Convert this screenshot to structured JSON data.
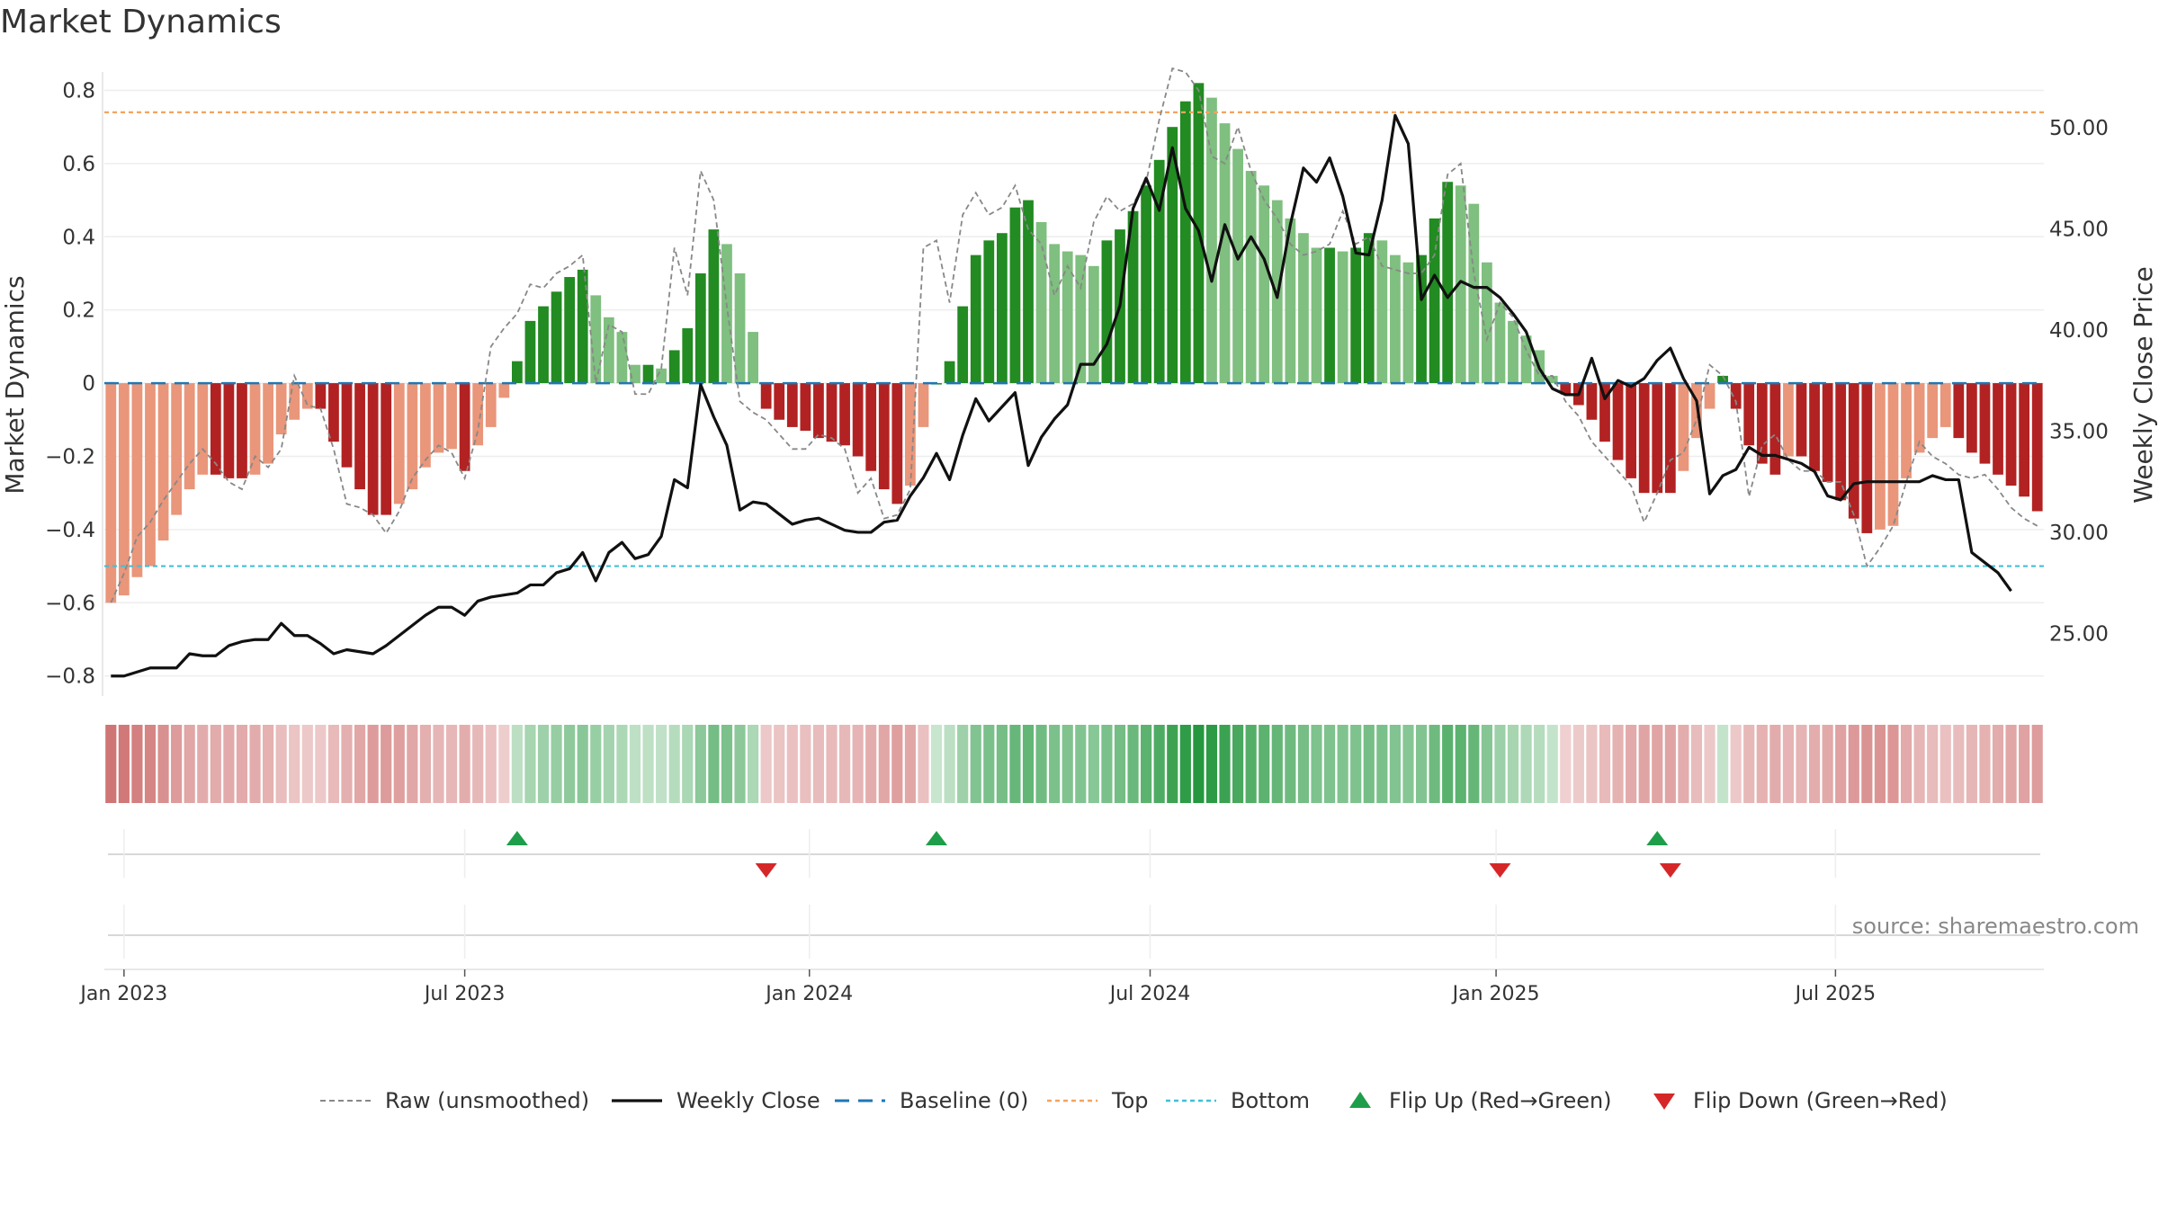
{
  "chart_data": {
    "type": "bar",
    "title": "Market Dynamics",
    "ylabel": "Market Dynamics",
    "y2label": "Weekly Close Price",
    "source": "source: sharemaestro.com",
    "ylim": [
      -0.85,
      0.87
    ],
    "y2lim": [
      22.0,
      53.1
    ],
    "yticks": [
      {
        "v": 0.8,
        "label": "0.8"
      },
      {
        "v": 0.6,
        "label": "0.6"
      },
      {
        "v": 0.4,
        "label": "0.4"
      },
      {
        "v": 0.2,
        "label": "0.2"
      },
      {
        "v": 0,
        "label": "0"
      },
      {
        "v": -0.2,
        "label": "−0.2"
      },
      {
        "v": -0.4,
        "label": "−0.4"
      },
      {
        "v": -0.6,
        "label": "−0.6"
      },
      {
        "v": -0.8,
        "label": "−0.8"
      }
    ],
    "y2ticks": [
      {
        "v": 50,
        "label": "50.00"
      },
      {
        "v": 45,
        "label": "45.00"
      },
      {
        "v": 40,
        "label": "40.00"
      },
      {
        "v": 35,
        "label": "35.00"
      },
      {
        "v": 30,
        "label": "30.00"
      },
      {
        "v": 25,
        "label": "25.00"
      }
    ],
    "xticks": [
      {
        "week": 1,
        "label": "Jan 2023"
      },
      {
        "week": 27,
        "label": "Jul 2023"
      },
      {
        "week": 53.3,
        "label": "Jan 2024"
      },
      {
        "week": 79.3,
        "label": "Jul 2024"
      },
      {
        "week": 105.7,
        "label": "Jan 2025"
      },
      {
        "week": 131.6,
        "label": "Jul 2025"
      }
    ],
    "top_line": 0.74,
    "bottom_line": -0.5,
    "colors": {
      "strong_green": "#228B22",
      "light_green": "#7FBF7F",
      "strong_red": "#B22222",
      "light_red": "#E9967A",
      "raw": "#888888",
      "close": "#111111",
      "baseline": "#1F77B4",
      "top": "#F4A460",
      "bottom": "#40C0D8",
      "flip_up": "#1E9E4A",
      "flip_down": "#D62728"
    },
    "dynamics": [
      -0.6,
      -0.58,
      -0.53,
      -0.5,
      -0.43,
      -0.36,
      -0.29,
      -0.25,
      -0.25,
      -0.26,
      -0.26,
      -0.25,
      -0.22,
      -0.14,
      -0.1,
      -0.07,
      -0.07,
      -0.16,
      -0.23,
      -0.29,
      -0.36,
      -0.36,
      -0.33,
      -0.29,
      -0.23,
      -0.19,
      -0.18,
      -0.24,
      -0.17,
      -0.12,
      -0.04,
      0.06,
      0.17,
      0.21,
      0.25,
      0.29,
      0.31,
      0.24,
      0.18,
      0.14,
      0.05,
      0.05,
      0.04,
      0.09,
      0.15,
      0.3,
      0.42,
      0.38,
      0.3,
      0.14,
      -0.07,
      -0.1,
      -0.12,
      -0.13,
      -0.15,
      -0.16,
      -0.17,
      -0.2,
      -0.24,
      -0.29,
      -0.33,
      -0.28,
      -0.12,
      0.0,
      0.06,
      0.21,
      0.35,
      0.39,
      0.41,
      0.48,
      0.5,
      0.44,
      0.38,
      0.36,
      0.35,
      0.32,
      0.39,
      0.42,
      0.47,
      0.54,
      0.61,
      0.7,
      0.77,
      0.82,
      0.78,
      0.71,
      0.64,
      0.58,
      0.54,
      0.5,
      0.45,
      0.41,
      0.37,
      0.37,
      0.36,
      0.37,
      0.41,
      0.39,
      0.35,
      0.33,
      0.35,
      0.45,
      0.55,
      0.54,
      0.49,
      0.33,
      0.22,
      0.17,
      0.13,
      0.09,
      0.02,
      -0.03,
      -0.06,
      -0.1,
      -0.16,
      -0.21,
      -0.26,
      -0.3,
      -0.3,
      -0.3,
      -0.24,
      -0.15,
      -0.07,
      0.02,
      -0.07,
      -0.17,
      -0.22,
      -0.25,
      -0.2,
      -0.2,
      -0.24,
      -0.27,
      -0.32,
      -0.37,
      -0.41,
      -0.4,
      -0.39,
      -0.26,
      -0.19,
      -0.15,
      -0.12,
      -0.15,
      -0.19,
      -0.22,
      -0.25,
      -0.28,
      -0.31,
      -0.35
    ],
    "raw": [
      -0.6,
      -0.52,
      -0.42,
      -0.38,
      -0.32,
      -0.27,
      -0.22,
      -0.18,
      -0.22,
      -0.27,
      -0.29,
      -0.2,
      -0.23,
      -0.18,
      0.02,
      -0.06,
      -0.07,
      -0.18,
      -0.33,
      -0.34,
      -0.36,
      -0.41,
      -0.35,
      -0.26,
      -0.21,
      -0.17,
      -0.19,
      -0.26,
      -0.13,
      0.1,
      0.15,
      0.19,
      0.27,
      0.26,
      0.3,
      0.32,
      0.35,
      0.0,
      0.16,
      0.14,
      -0.03,
      -0.03,
      0.04,
      0.37,
      0.24,
      0.58,
      0.5,
      0.21,
      -0.05,
      -0.08,
      -0.1,
      -0.14,
      -0.18,
      -0.18,
      -0.14,
      -0.15,
      -0.18,
      -0.3,
      -0.26,
      -0.37,
      -0.36,
      -0.29,
      0.37,
      0.39,
      0.22,
      0.46,
      0.52,
      0.46,
      0.48,
      0.54,
      0.42,
      0.38,
      0.24,
      0.32,
      0.26,
      0.44,
      0.51,
      0.47,
      0.49,
      0.55,
      0.72,
      0.86,
      0.85,
      0.8,
      0.62,
      0.6,
      0.7,
      0.58,
      0.5,
      0.45,
      0.38,
      0.35,
      0.36,
      0.38,
      0.47,
      0.38,
      0.4,
      0.32,
      0.31,
      0.3,
      0.3,
      0.35,
      0.57,
      0.6,
      0.3,
      0.12,
      0.22,
      0.18,
      0.09,
      0.02,
      0.02,
      -0.05,
      -0.09,
      -0.16,
      -0.2,
      -0.24,
      -0.28,
      -0.38,
      -0.3,
      -0.21,
      -0.19,
      -0.1,
      0.05,
      0.02,
      -0.05,
      -0.31,
      -0.17,
      -0.14,
      -0.21,
      -0.24,
      -0.24,
      -0.27,
      -0.27,
      -0.36,
      -0.5,
      -0.45,
      -0.39,
      -0.27,
      -0.16,
      -0.2,
      -0.22,
      -0.25,
      -0.26,
      -0.25,
      -0.29,
      -0.34,
      -0.37,
      -0.39
    ],
    "close": [
      22.9,
      22.9,
      23.1,
      23.3,
      23.3,
      23.3,
      24.0,
      23.9,
      23.9,
      24.4,
      24.6,
      24.7,
      24.7,
      25.5,
      24.9,
      24.9,
      24.5,
      24.0,
      24.2,
      24.1,
      24.0,
      24.4,
      24.9,
      25.4,
      25.9,
      26.3,
      26.3,
      25.9,
      26.6,
      26.8,
      26.9,
      27.0,
      27.4,
      27.4,
      28.0,
      28.2,
      29.0,
      27.6,
      29.0,
      29.5,
      28.7,
      28.9,
      29.8,
      32.6,
      32.2,
      37.3,
      35.7,
      34.3,
      31.1,
      31.5,
      31.4,
      30.9,
      30.4,
      30.6,
      30.7,
      30.4,
      30.1,
      30.0,
      30.0,
      30.5,
      30.6,
      31.8,
      32.7,
      33.9,
      32.6,
      34.8,
      36.6,
      35.5,
      36.2,
      36.9,
      33.3,
      34.7,
      35.6,
      36.3,
      38.3,
      38.3,
      39.3,
      41.2,
      46.0,
      47.5,
      45.9,
      49.0,
      46.0,
      44.9,
      42.4,
      45.2,
      43.5,
      44.6,
      43.5,
      41.6,
      45.2,
      48.0,
      47.3,
      48.5,
      46.6,
      43.8,
      43.7,
      46.4,
      50.6,
      49.2,
      41.5,
      42.7,
      41.6,
      42.4,
      42.1,
      42.1,
      41.6,
      40.8,
      39.9,
      38.1,
      37.1,
      36.8,
      36.8,
      38.6,
      36.6,
      37.5,
      37.2,
      37.6,
      38.5,
      39.1,
      37.6,
      36.5,
      31.9,
      32.8,
      33.1,
      34.2,
      33.8,
      33.8,
      33.6,
      33.4,
      33.0,
      31.8,
      31.6,
      32.4,
      32.5,
      32.5,
      32.5,
      32.5,
      32.5,
      32.8,
      32.6,
      32.6,
      29.0,
      28.5,
      28.0,
      27.1
    ],
    "flip_up_weeks": [
      31,
      63,
      118
    ],
    "flip_down_weeks": [
      50,
      106,
      119
    ],
    "legend": [
      {
        "key": "raw",
        "label": "Raw (unsmoothed)"
      },
      {
        "key": "close",
        "label": "Weekly Close"
      },
      {
        "key": "baseline",
        "label": "Baseline (0)"
      },
      {
        "key": "top",
        "label": "Top"
      },
      {
        "key": "bottom",
        "label": "Bottom"
      },
      {
        "key": "flip_up",
        "label": "Flip Up (Red→Green)"
      },
      {
        "key": "flip_down",
        "label": "Flip Down (Green→Red)"
      }
    ]
  }
}
